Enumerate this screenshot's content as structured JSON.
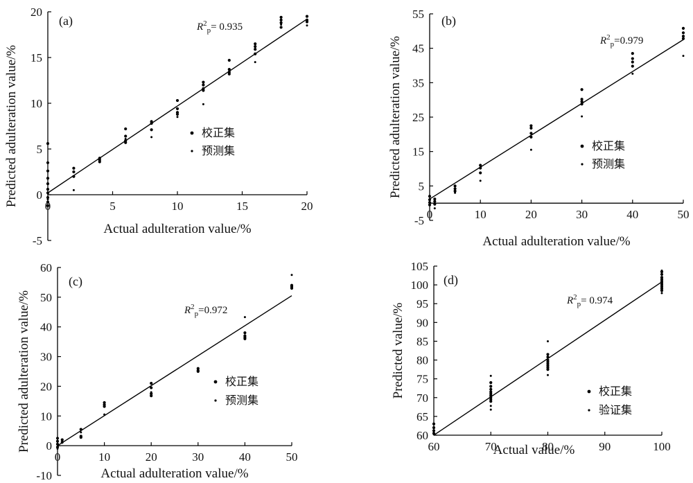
{
  "chart_data": [
    {
      "type": "scatter",
      "panel_label": "(a)",
      "xlabel": "Actual adulteration value/%",
      "ylabel": "Predicted adulteration value/%",
      "xlim": [
        0,
        20
      ],
      "ylim": [
        -5,
        20
      ],
      "xticks": [
        0,
        5,
        10,
        15,
        20
      ],
      "yticks": [
        -5,
        0,
        5,
        10,
        15,
        20
      ],
      "r2": {
        "R": "R",
        "sup": "2",
        "sub": "p",
        "value": "= 0.935"
      },
      "legend": [
        "校正集",
        "预测集"
      ],
      "fit_line": {
        "x": [
          0,
          20
        ],
        "y": [
          0.2,
          19.2
        ]
      },
      "series": [
        {
          "name": "校正集",
          "points": [
            [
              0,
              5.6
            ],
            [
              0,
              3.5
            ],
            [
              0,
              2.6
            ],
            [
              0,
              1.8
            ],
            [
              0,
              1.2
            ],
            [
              0,
              0.6
            ],
            [
              0,
              0.2
            ],
            [
              0,
              -0.3
            ],
            [
              0,
              -0.8
            ],
            [
              0,
              -1.2
            ],
            [
              2,
              2.9
            ],
            [
              2,
              2.5
            ],
            [
              2,
              2.0
            ],
            [
              4,
              4.0
            ],
            [
              4,
              3.8
            ],
            [
              4,
              3.6
            ],
            [
              6,
              7.2
            ],
            [
              6,
              6.4
            ],
            [
              6,
              5.9
            ],
            [
              6,
              5.7
            ],
            [
              8,
              8.0
            ],
            [
              8,
              7.8
            ],
            [
              8,
              7.1
            ],
            [
              10,
              10.3
            ],
            [
              10,
              9.4
            ],
            [
              10,
              9.0
            ],
            [
              10,
              8.8
            ],
            [
              12,
              12.3
            ],
            [
              12,
              12.0
            ],
            [
              12,
              11.6
            ],
            [
              12,
              11.4
            ],
            [
              14,
              14.7
            ],
            [
              14,
              13.7
            ],
            [
              14,
              13.4
            ],
            [
              14,
              13.2
            ],
            [
              16,
              16.5
            ],
            [
              16,
              16.2
            ],
            [
              16,
              15.9
            ],
            [
              16,
              15.4
            ],
            [
              18,
              19.4
            ],
            [
              18,
              19.1
            ],
            [
              18,
              18.8
            ],
            [
              18,
              18.3
            ],
            [
              20,
              19.5
            ],
            [
              20,
              19.1
            ],
            [
              20,
              18.9
            ]
          ]
        },
        {
          "name": "预测集",
          "points": [
            [
              0,
              -0.5
            ],
            [
              2,
              0.5
            ],
            [
              6,
              6.1
            ],
            [
              8,
              6.3
            ],
            [
              10,
              8.5
            ],
            [
              12,
              9.9
            ],
            [
              14,
              13.5
            ],
            [
              16,
              14.5
            ],
            [
              18,
              18.6
            ],
            [
              20,
              18.5
            ]
          ]
        }
      ]
    },
    {
      "type": "scatter",
      "panel_label": "(b)",
      "xlabel": "Actual adulteration value/%",
      "ylabel": "Predicted adulteration value/%",
      "xlim": [
        0,
        50
      ],
      "ylim": [
        -5,
        55
      ],
      "xticks": [
        0,
        10,
        20,
        30,
        40,
        50
      ],
      "yticks": [
        -5,
        5,
        15,
        25,
        35,
        45,
        55
      ],
      "r2": {
        "R": "R",
        "sup": "2",
        "sub": "p",
        "value": "=0.979"
      },
      "legend": [
        "校正集",
        "预测集"
      ],
      "fit_line": {
        "x": [
          0,
          50
        ],
        "y": [
          1.2,
          47.5
        ]
      },
      "series": [
        {
          "name": "校正集",
          "points": [
            [
              0,
              2.0
            ],
            [
              0,
              1.0
            ],
            [
              0,
              0.2
            ],
            [
              0,
              -0.5
            ],
            [
              1,
              1.2
            ],
            [
              1,
              0.5
            ],
            [
              1,
              -0.3
            ],
            [
              5,
              5.0
            ],
            [
              5,
              4.2
            ],
            [
              5,
              3.5
            ],
            [
              10,
              11.0
            ],
            [
              10,
              10.2
            ],
            [
              10,
              8.8
            ],
            [
              20,
              22.5
            ],
            [
              20,
              21.8
            ],
            [
              20,
              20.3
            ],
            [
              20,
              19.2
            ],
            [
              30,
              33.0
            ],
            [
              30,
              30.2
            ],
            [
              30,
              29.5
            ],
            [
              30,
              28.8
            ],
            [
              40,
              43.5
            ],
            [
              40,
              42.0
            ],
            [
              40,
              41.0
            ],
            [
              40,
              39.8
            ],
            [
              50,
              50.8
            ],
            [
              50,
              49.5
            ],
            [
              50,
              48.5
            ],
            [
              50,
              47.8
            ]
          ]
        },
        {
          "name": "预测集",
          "points": [
            [
              1,
              -1.5
            ],
            [
              5,
              3.0
            ],
            [
              10,
              6.5
            ],
            [
              20,
              15.5
            ],
            [
              30,
              25.2
            ],
            [
              40,
              37.6
            ],
            [
              50,
              42.8
            ]
          ]
        }
      ]
    },
    {
      "type": "scatter",
      "panel_label": "(c)",
      "xlabel": "Actual adulteration value/%",
      "ylabel": "Predicted adulteration value/%",
      "xlim": [
        0,
        50
      ],
      "ylim": [
        -10,
        60
      ],
      "xticks": [
        0,
        10,
        20,
        30,
        40,
        50
      ],
      "yticks": [
        -10,
        0,
        10,
        20,
        30,
        40,
        50,
        60
      ],
      "r2": {
        "R": "R",
        "sup": "2",
        "sub": "p",
        "value": "=0.972"
      },
      "legend": [
        "校正集",
        "预测集"
      ],
      "fit_line": {
        "x": [
          0,
          50
        ],
        "y": [
          0.0,
          50.5
        ]
      },
      "series": [
        {
          "name": "校正集",
          "points": [
            [
              0,
              2.5
            ],
            [
              0,
              1.5
            ],
            [
              0,
              0.5
            ],
            [
              0,
              -0.5
            ],
            [
              1,
              2.0
            ],
            [
              1,
              1.2
            ],
            [
              5,
              5.5
            ],
            [
              5,
              3.2
            ],
            [
              5,
              2.8
            ],
            [
              10,
              14.5
            ],
            [
              10,
              13.8
            ],
            [
              10,
              13.2
            ],
            [
              20,
              21.0
            ],
            [
              20,
              19.5
            ],
            [
              20,
              17.5
            ],
            [
              20,
              16.8
            ],
            [
              30,
              26.0
            ],
            [
              30,
              25.3
            ],
            [
              30,
              25.0
            ],
            [
              40,
              38.0
            ],
            [
              40,
              37.0
            ],
            [
              40,
              36.5
            ],
            [
              40,
              36.0
            ],
            [
              50,
              54.0
            ],
            [
              50,
              53.5
            ],
            [
              50,
              53.0
            ]
          ]
        },
        {
          "name": "预测集",
          "points": [
            [
              0,
              -1.0
            ],
            [
              1,
              1.0
            ],
            [
              5,
              4.5
            ],
            [
              10,
              10.5
            ],
            [
              20,
              18.0
            ],
            [
              40,
              43.3
            ],
            [
              50,
              57.5
            ]
          ]
        }
      ]
    },
    {
      "type": "scatter",
      "panel_label": "(d)",
      "xlabel": "Actual  value/%",
      "ylabel": "Predicted value/%",
      "xlim": [
        60,
        100
      ],
      "ylim": [
        60,
        105
      ],
      "xticks": [
        60,
        70,
        80,
        90,
        100
      ],
      "yticks": [
        60,
        65,
        70,
        75,
        80,
        85,
        90,
        95,
        100,
        105
      ],
      "r2": {
        "R": "R",
        "sup": "2",
        "sub": "p",
        "value": "= 0.974"
      },
      "legend": [
        "校正集",
        "验证集"
      ],
      "fit_line": {
        "x": [
          60,
          100
        ],
        "y": [
          60.0,
          100.8
        ]
      },
      "series": [
        {
          "name": "校正集",
          "points": [
            [
              60,
              63.0
            ],
            [
              60,
              62.0
            ],
            [
              60,
              61.2
            ],
            [
              60,
              60.5
            ],
            [
              70,
              74.0
            ],
            [
              70,
              73.0
            ],
            [
              70,
              72.2
            ],
            [
              70,
              71.5
            ],
            [
              70,
              71.0
            ],
            [
              70,
              70.5
            ],
            [
              70,
              70.0
            ],
            [
              70,
              69.5
            ],
            [
              70,
              69.0
            ],
            [
              80,
              81.5
            ],
            [
              80,
              80.8
            ],
            [
              80,
              80.0
            ],
            [
              80,
              79.5
            ],
            [
              80,
              79.0
            ],
            [
              80,
              78.5
            ],
            [
              80,
              78.0
            ],
            [
              80,
              77.5
            ],
            [
              100,
              103.5
            ],
            [
              100,
              102.8
            ],
            [
              100,
              102.0
            ],
            [
              100,
              101.5
            ],
            [
              100,
              101.0
            ],
            [
              100,
              100.5
            ],
            [
              100,
              100.0
            ],
            [
              100,
              99.5
            ],
            [
              100,
              99.0
            ],
            [
              100,
              98.5
            ]
          ]
        },
        {
          "name": "验证集",
          "points": [
            [
              60,
              60.2
            ],
            [
              70,
              75.8
            ],
            [
              70,
              67.8
            ],
            [
              70,
              66.8
            ],
            [
              80,
              85.0
            ],
            [
              80,
              76.0
            ],
            [
              100,
              97.8
            ],
            [
              100,
              103.8
            ]
          ]
        }
      ]
    }
  ]
}
